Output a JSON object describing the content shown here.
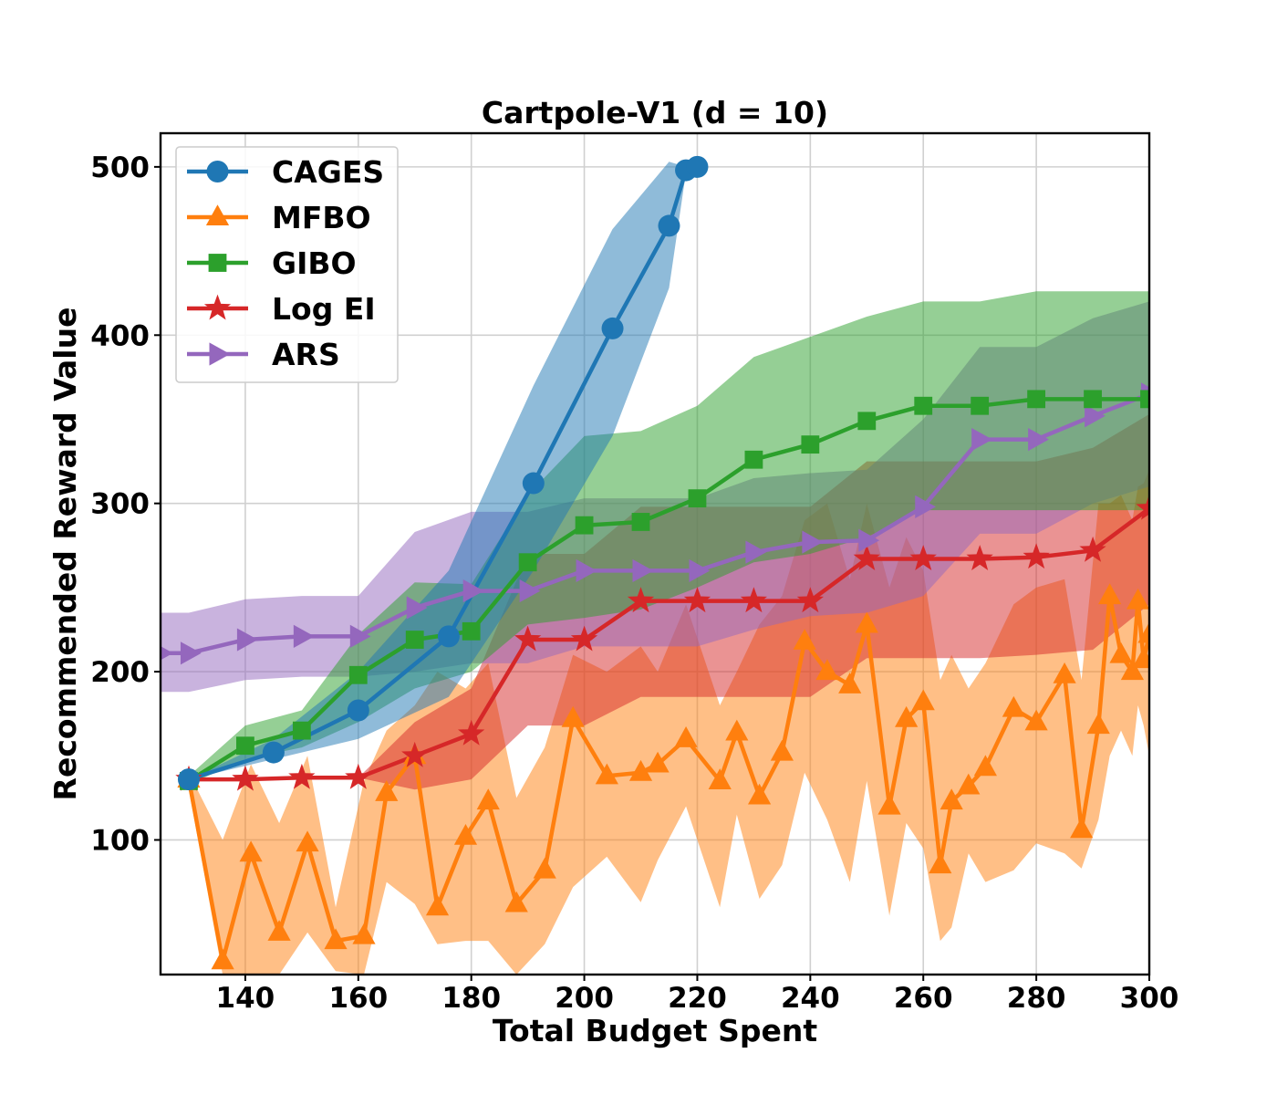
{
  "chart_data": {
    "type": "line",
    "title": "Cartpole-V1 (d = 10)",
    "xlabel": "Total Budget Spent",
    "ylabel": "Recommended Reward Value",
    "xlim": [
      125,
      300
    ],
    "ylim": [
      20,
      520
    ],
    "xticks": [
      140,
      160,
      180,
      200,
      220,
      240,
      260,
      280,
      300
    ],
    "yticks": [
      100,
      200,
      300,
      400,
      500
    ],
    "grid": true,
    "legend_position": "top-left",
    "series": [
      {
        "name": "CAGES",
        "color": "#1f77b4",
        "marker": "circle",
        "x": [
          130,
          145,
          160,
          176,
          191,
          205,
          215,
          218,
          220
        ],
        "y": [
          136,
          152,
          177,
          221,
          312,
          404,
          465,
          498,
          500
        ],
        "lower": [
          136,
          148,
          160,
          185,
          260,
          340,
          428,
          497,
          500
        ],
        "upper": [
          136,
          160,
          200,
          260,
          370,
          463,
          503,
          500,
          500
        ]
      },
      {
        "name": "MFBO",
        "color": "#ff7f0e",
        "marker": "triangle-up",
        "x": [
          130,
          136,
          141,
          146,
          151,
          156,
          161,
          165,
          170,
          174,
          179,
          183,
          188,
          193,
          198,
          204,
          210,
          213,
          218,
          224,
          227,
          231,
          235,
          239,
          243,
          247,
          250,
          254,
          257,
          260,
          263,
          265,
          268,
          271,
          276,
          280,
          285,
          288,
          291,
          293,
          295,
          297,
          298,
          299,
          300
        ],
        "y": [
          136,
          28,
          92,
          45,
          98,
          40,
          43,
          128,
          150,
          60,
          102,
          123,
          62,
          82,
          172,
          138,
          140,
          145,
          160,
          135,
          164,
          126,
          152,
          218,
          200,
          192,
          228,
          120,
          172,
          182,
          85,
          123,
          132,
          143,
          178,
          170,
          198,
          106,
          168,
          245,
          210,
          200,
          242,
          207,
          222
        ],
        "lower": [
          130,
          20,
          20,
          20,
          45,
          22,
          20,
          75,
          62,
          38,
          40,
          40,
          20,
          38,
          72,
          90,
          63,
          88,
          120,
          60,
          115,
          65,
          85,
          140,
          112,
          75,
          135,
          55,
          110,
          95,
          40,
          48,
          92,
          75,
          82,
          98,
          92,
          83,
          112,
          150,
          165,
          150,
          180,
          168,
          150
        ],
        "upper": [
          140,
          100,
          145,
          110,
          150,
          60,
          135,
          165,
          180,
          200,
          190,
          205,
          125,
          155,
          210,
          200,
          215,
          200,
          240,
          180,
          200,
          228,
          245,
          290,
          300,
          255,
          300,
          250,
          280,
          260,
          195,
          210,
          190,
          205,
          240,
          250,
          255,
          195,
          300,
          300,
          305,
          290,
          310,
          312,
          320
        ]
      },
      {
        "name": "GIBO",
        "color": "#2ca02c",
        "marker": "square",
        "x": [
          130,
          140,
          150,
          160,
          170,
          180,
          190,
          200,
          210,
          220,
          230,
          240,
          250,
          260,
          270,
          280,
          290,
          300
        ],
        "y": [
          135,
          156,
          165,
          198,
          219,
          224,
          265,
          287,
          289,
          303,
          326,
          335,
          349,
          358,
          358,
          362,
          362,
          362
        ],
        "lower": [
          133,
          148,
          155,
          170,
          190,
          200,
          228,
          232,
          237,
          250,
          265,
          270,
          280,
          296,
          296,
          296,
          296,
          296
        ],
        "upper": [
          138,
          168,
          177,
          222,
          253,
          252,
          305,
          340,
          343,
          358,
          387,
          399,
          411,
          420,
          420,
          426,
          426,
          426
        ]
      },
      {
        "name": "Log EI",
        "color": "#d62728",
        "marker": "star",
        "x": [
          130,
          140,
          150,
          160,
          170,
          180,
          190,
          200,
          210,
          220,
          230,
          240,
          250,
          260,
          270,
          280,
          290,
          300
        ],
        "y": [
          136,
          136,
          137,
          137,
          150,
          163,
          219,
          219,
          242,
          242,
          242,
          242,
          267,
          267,
          267,
          268,
          272,
          297
        ],
        "lower": [
          136,
          136,
          137,
          137,
          130,
          136,
          168,
          168,
          185,
          185,
          185,
          185,
          208,
          208,
          208,
          210,
          213,
          240
        ],
        "upper": [
          136,
          136,
          137,
          137,
          170,
          190,
          270,
          270,
          298,
          298,
          298,
          298,
          325,
          325,
          325,
          325,
          333,
          353
        ]
      },
      {
        "name": "ARS",
        "color": "#9467bd",
        "marker": "triangle-right",
        "x": [
          125,
          130,
          140,
          150,
          160,
          170,
          180,
          190,
          200,
          210,
          220,
          230,
          240,
          250,
          260,
          270,
          280,
          290,
          300
        ],
        "y": [
          211,
          211,
          219,
          221,
          221,
          238,
          248,
          248,
          260,
          260,
          260,
          271,
          277,
          278,
          298,
          338,
          338,
          352,
          365
        ],
        "lower": [
          188,
          188,
          195,
          197,
          197,
          200,
          205,
          205,
          215,
          215,
          215,
          225,
          233,
          235,
          245,
          282,
          282,
          300,
          310
        ],
        "upper": [
          235,
          235,
          243,
          245,
          245,
          283,
          295,
          295,
          303,
          303,
          303,
          315,
          318,
          320,
          350,
          393,
          393,
          410,
          420
        ]
      }
    ]
  }
}
